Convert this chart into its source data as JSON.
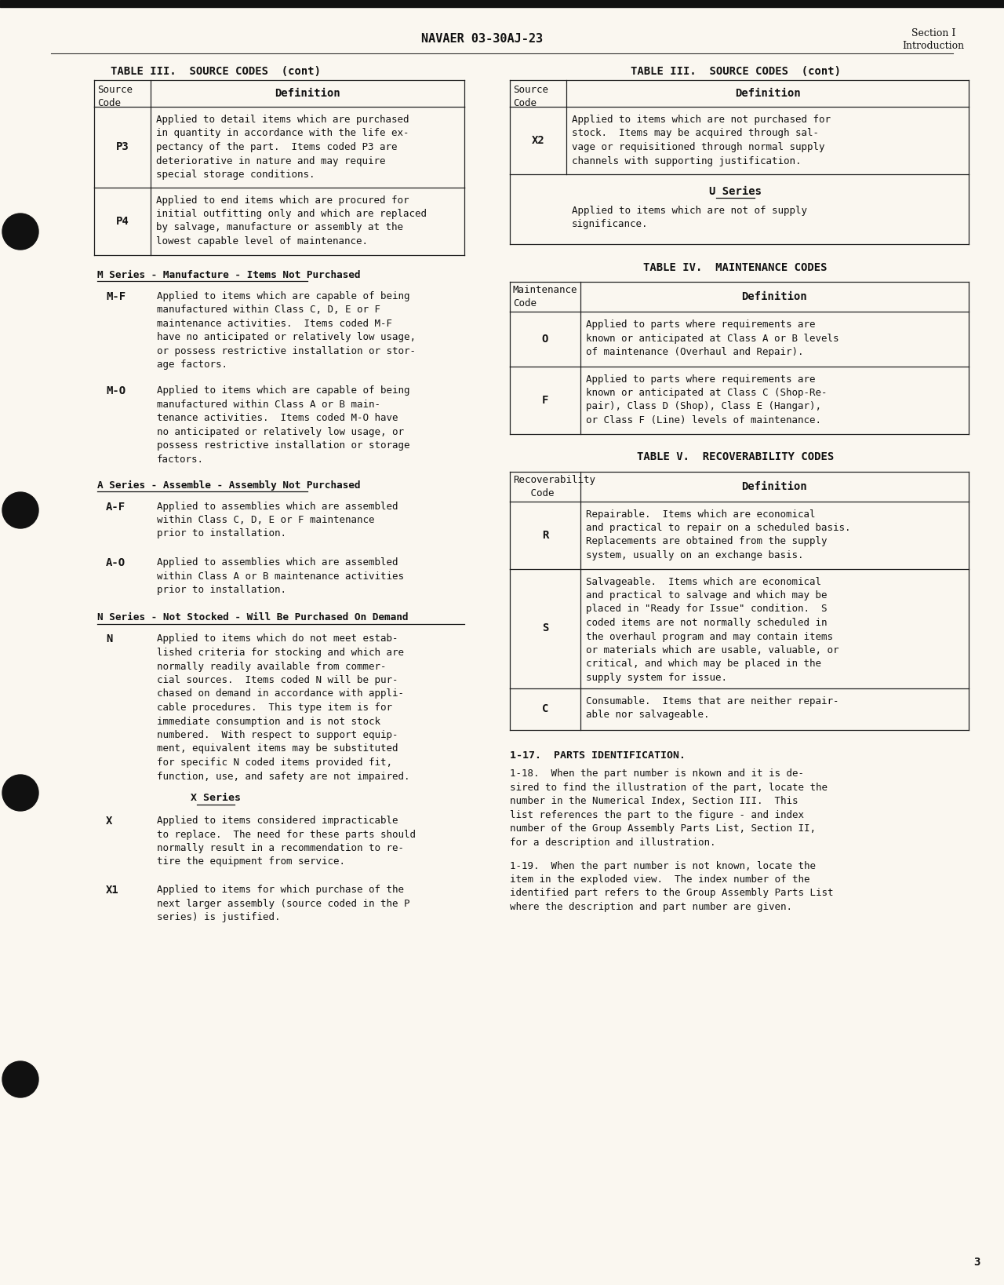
{
  "page_bg": "#faf7f0",
  "text_color": "#111111",
  "header_center": "NAVAER 03-30AJ-23",
  "header_right_line1": "Section I",
  "header_right_line2": "Introduction",
  "page_number": "3",
  "left_table_title": "TABLE III.  SOURCE CODES  (cont)",
  "right_table1_title": "TABLE III.  SOURCE CODES  (cont)",
  "right_table2_title": "TABLE IV.  MAINTENANCE CODES",
  "right_table3_title": "TABLE V.  RECOVERABILITY CODES",
  "parts_heading": "1-17.  PARTS IDENTIFICATION.",
  "parts_para1": "1-18.  When the part number is nkown and it is de-\nsired to find the illustration of the part, locate the\nnumber in the Numerical Index, Section III.  This\nlist references the part to the figure - and index\nnumber of the Group Assembly Parts List, Section II,\nfor a description and illustration.",
  "parts_para2": "1-19.  When the part number is not known, locate the\nitem in the exploded view.  The index number of the\nidentified part refers to the Group Assembly Parts List\nwhere the description and part number are given."
}
